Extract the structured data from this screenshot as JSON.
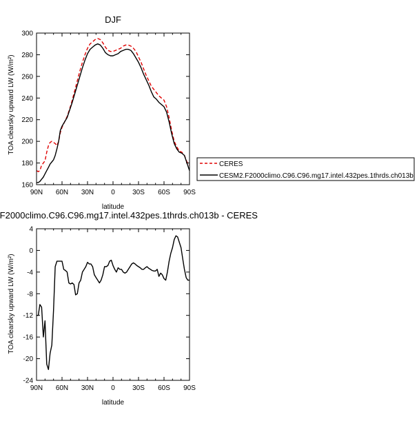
{
  "chart_data": [
    {
      "type": "line",
      "title": "DJF",
      "xlabel": "latitude",
      "ylabel": "TOA clearsky upward LW (W/m²)",
      "xlim": [
        90,
        -90
      ],
      "ylim": [
        160,
        300
      ],
      "x_ticks": [
        90,
        60,
        30,
        0,
        -30,
        -60,
        -90
      ],
      "x_tick_labels": [
        "90N",
        "60N",
        "30N",
        "0",
        "30S",
        "60S",
        "90S"
      ],
      "y_ticks": [
        160,
        180,
        200,
        220,
        240,
        260,
        280,
        300
      ],
      "y_tick_labels": [
        "160",
        "180",
        "200",
        "220",
        "240",
        "260",
        "280",
        "300"
      ],
      "legend_position": "right, outside",
      "x": [
        90,
        88,
        86,
        84,
        82,
        80,
        78,
        76,
        74,
        72,
        70,
        68,
        66,
        64,
        62,
        60,
        57,
        54,
        51,
        48,
        45,
        42,
        39,
        36,
        33,
        30,
        27,
        24,
        21,
        18,
        15,
        12,
        9,
        6,
        3,
        0,
        -3,
        -6,
        -9,
        -12,
        -15,
        -18,
        -21,
        -24,
        -27,
        -30,
        -33,
        -36,
        -39,
        -42,
        -45,
        -48,
        -51,
        -54,
        -57,
        -60,
        -63,
        -66,
        -69,
        -72,
        -75,
        -78,
        -81,
        -84,
        -87,
        -90
      ],
      "series": [
        {
          "name": "CERES",
          "color": "#e00000",
          "dash": true,
          "values": [
            173,
            172,
            173,
            178,
            180,
            182,
            190,
            196,
            199,
            200,
            199,
            198,
            196,
            200,
            208,
            213,
            218,
            223,
            230,
            238,
            247,
            256,
            265,
            273,
            280,
            286,
            290,
            292,
            294,
            295,
            294,
            291,
            287,
            284,
            283,
            283,
            284,
            285,
            286,
            288,
            289,
            289,
            288,
            286,
            283,
            278,
            273,
            267,
            261,
            256,
            251,
            248,
            245,
            242,
            240,
            238,
            232,
            222,
            210,
            200,
            195,
            191,
            190,
            187,
            181,
            178
          ]
        },
        {
          "name": "CESM2.F2000climo.C96.C96.mg17.intel.432pes.1thrds.ch013b",
          "color": "#000000",
          "dash": false,
          "values": [
            162,
            162,
            163,
            165,
            167,
            170,
            173,
            176,
            179,
            181,
            183,
            187,
            193,
            200,
            210,
            214,
            218,
            222,
            229,
            236,
            244,
            252,
            260,
            268,
            275,
            281,
            285,
            287,
            289,
            290,
            289,
            286,
            282,
            280,
            279,
            279,
            280,
            281,
            283,
            284,
            285,
            285,
            284,
            281,
            277,
            273,
            268,
            262,
            257,
            252,
            246,
            241,
            239,
            236,
            234,
            232,
            227,
            218,
            207,
            198,
            193,
            190,
            189,
            187,
            180,
            173
          ]
        }
      ]
    },
    {
      "type": "line",
      "title": ".F2000climo.C96.C96.mg17.intel.432pes.1thrds.ch013b - CERES",
      "xlabel": "latitude",
      "ylabel": "TOA clearsky upward LW (W/m²)",
      "xlim": [
        90,
        -90
      ],
      "ylim": [
        -24,
        4
      ],
      "x_ticks": [
        90,
        60,
        30,
        0,
        -30,
        -60,
        -90
      ],
      "x_tick_labels": [
        "90N",
        "60N",
        "30N",
        "0",
        "30S",
        "60S",
        "90S"
      ],
      "y_ticks": [
        -24,
        -20,
        -16,
        -12,
        -8,
        -4,
        0,
        4
      ],
      "y_tick_labels": [
        "-24",
        "-20",
        "-16",
        "-12",
        "-8",
        "-4",
        "0",
        "4"
      ],
      "x": [
        90,
        88,
        86,
        84,
        82,
        80,
        78,
        76,
        74,
        72,
        70,
        68,
        66,
        64,
        62,
        60,
        58,
        56,
        54,
        52,
        50,
        48,
        46,
        44,
        42,
        40,
        38,
        36,
        34,
        32,
        30,
        28,
        26,
        24,
        22,
        20,
        18,
        16,
        14,
        12,
        10,
        8,
        6,
        4,
        2,
        0,
        -2,
        -4,
        -6,
        -8,
        -10,
        -12,
        -14,
        -16,
        -18,
        -20,
        -22,
        -24,
        -26,
        -28,
        -30,
        -32,
        -34,
        -36,
        -38,
        -40,
        -42,
        -44,
        -46,
        -48,
        -50,
        -52,
        -54,
        -56,
        -58,
        -60,
        -62,
        -64,
        -66,
        -68,
        -70,
        -72,
        -74,
        -76,
        -78,
        -80,
        -82,
        -84,
        -86,
        -88,
        -90
      ],
      "series": [
        {
          "name": "",
          "color": "#000000",
          "dash": false,
          "values": [
            -12,
            -12,
            -10,
            -10.5,
            -16,
            -13,
            -21,
            -22,
            -19,
            -17.5,
            -11,
            -3,
            -2,
            -2,
            -2,
            -2,
            -3.5,
            -3.7,
            -4,
            -6,
            -6.2,
            -6,
            -6.3,
            -8.2,
            -8,
            -6,
            -5.5,
            -4,
            -3.5,
            -3,
            -2.2,
            -2.5,
            -2.5,
            -3,
            -4.5,
            -5,
            -5.5,
            -6,
            -5.5,
            -4.5,
            -3,
            -3,
            -2.8,
            -2,
            -1.8,
            -2.8,
            -3.5,
            -4,
            -3.2,
            -3.5,
            -3.5,
            -4,
            -4.2,
            -4,
            -3.5,
            -3,
            -2.5,
            -2.3,
            -2.5,
            -2.8,
            -3,
            -3.2,
            -3.5,
            -3.5,
            -3.2,
            -3,
            -3.3,
            -3.5,
            -3.7,
            -3.8,
            -3.8,
            -3.5,
            -4.8,
            -4.2,
            -4.5,
            -5.2,
            -5.5,
            -4,
            -2,
            -0.5,
            0.5,
            2,
            2.7,
            2.5,
            1.5,
            0.5,
            -1.5,
            -3.5,
            -5,
            -5.5,
            -5.5
          ]
        }
      ]
    }
  ]
}
